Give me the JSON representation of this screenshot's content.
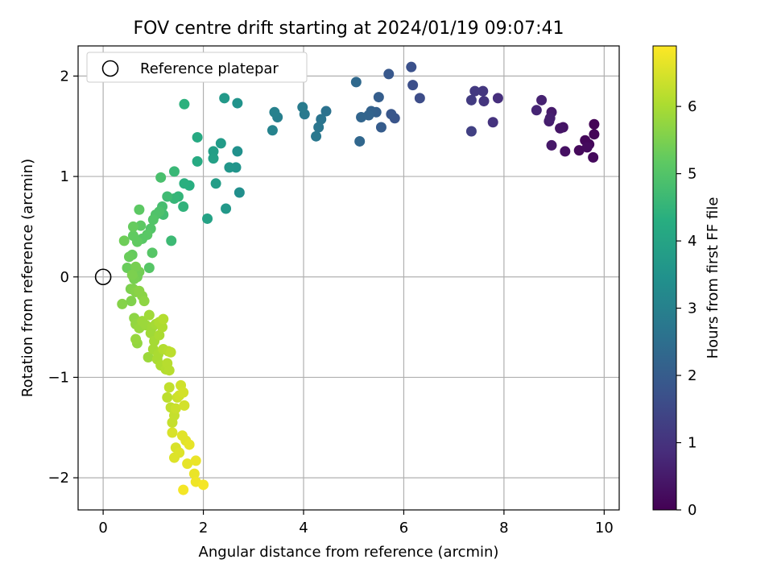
{
  "chart_data": {
    "type": "scatter",
    "title": "FOV centre drift starting at 2024/01/19 09:07:41",
    "xlabel": "Angular distance from reference (arcmin)",
    "ylabel": "Rotation from reference (arcmin)",
    "xlim": [
      -0.5,
      10.3
    ],
    "ylim": [
      -2.32,
      2.3
    ],
    "xticks": [
      0,
      2,
      4,
      6,
      8,
      10
    ],
    "yticks": [
      -2,
      -1,
      0,
      1,
      2
    ],
    "grid": true,
    "legend": {
      "position": "top-left",
      "label": "Reference platepar"
    },
    "reference_point": {
      "x": 0,
      "y": 0,
      "marker": "open-circle"
    },
    "colorbar": {
      "label": "Hours from first FF file",
      "colormap": "viridis",
      "range": [
        0,
        6.9
      ],
      "ticks": [
        0,
        1,
        2,
        3,
        4,
        5,
        6
      ]
    },
    "points": [
      [
        9.8,
        1.52,
        0.05
      ],
      [
        9.8,
        1.42,
        0.08
      ],
      [
        9.7,
        1.32,
        0.1
      ],
      [
        9.62,
        1.36,
        0.12
      ],
      [
        9.5,
        1.26,
        0.15
      ],
      [
        9.78,
        1.19,
        0.18
      ],
      [
        9.66,
        1.29,
        0.2
      ],
      [
        9.22,
        1.25,
        0.3
      ],
      [
        9.18,
        1.49,
        0.35
      ],
      [
        9.12,
        1.48,
        0.4
      ],
      [
        8.95,
        1.31,
        0.45
      ],
      [
        8.95,
        1.64,
        0.5
      ],
      [
        8.9,
        1.55,
        0.55
      ],
      [
        8.92,
        1.58,
        0.6
      ],
      [
        8.75,
        1.76,
        0.65
      ],
      [
        8.65,
        1.66,
        0.7
      ],
      [
        7.88,
        1.78,
        0.9
      ],
      [
        7.78,
        1.54,
        1.0
      ],
      [
        7.6,
        1.75,
        1.05
      ],
      [
        7.58,
        1.85,
        1.1
      ],
      [
        7.42,
        1.85,
        1.15
      ],
      [
        7.35,
        1.76,
        1.2
      ],
      [
        7.35,
        1.45,
        1.3
      ],
      [
        6.32,
        1.78,
        1.6
      ],
      [
        6.18,
        1.91,
        1.65
      ],
      [
        6.15,
        2.09,
        1.7
      ],
      [
        5.82,
        1.58,
        1.8
      ],
      [
        5.75,
        1.62,
        1.85
      ],
      [
        5.7,
        2.02,
        1.9
      ],
      [
        5.55,
        1.49,
        2.0
      ],
      [
        5.5,
        1.79,
        2.05
      ],
      [
        5.45,
        1.64,
        2.1
      ],
      [
        5.35,
        1.65,
        2.15
      ],
      [
        5.3,
        1.61,
        2.2
      ],
      [
        5.15,
        1.59,
        2.25
      ],
      [
        5.12,
        1.35,
        2.3
      ],
      [
        5.05,
        1.94,
        2.35
      ],
      [
        4.45,
        1.65,
        2.6
      ],
      [
        4.35,
        1.57,
        2.65
      ],
      [
        4.3,
        1.49,
        2.7
      ],
      [
        4.25,
        1.4,
        2.75
      ],
      [
        4.02,
        1.62,
        2.8
      ],
      [
        3.98,
        1.69,
        2.85
      ],
      [
        3.48,
        1.59,
        2.95
      ],
      [
        3.42,
        1.64,
        3.0
      ],
      [
        3.38,
        1.46,
        3.05
      ],
      [
        2.72,
        0.84,
        3.4
      ],
      [
        2.68,
        1.25,
        3.45
      ],
      [
        2.68,
        1.73,
        3.5
      ],
      [
        2.65,
        1.09,
        3.55
      ],
      [
        2.52,
        1.09,
        3.6
      ],
      [
        2.45,
        0.68,
        3.65
      ],
      [
        2.42,
        1.78,
        3.7
      ],
      [
        2.35,
        1.33,
        3.75
      ],
      [
        2.25,
        0.93,
        3.8
      ],
      [
        2.2,
        1.25,
        3.85
      ],
      [
        2.2,
        1.18,
        3.9
      ],
      [
        2.08,
        0.58,
        3.95
      ],
      [
        1.88,
        1.39,
        4.15
      ],
      [
        1.88,
        1.15,
        4.2
      ],
      [
        1.72,
        0.91,
        4.3
      ],
      [
        1.62,
        0.93,
        4.35
      ],
      [
        1.62,
        1.72,
        4.4
      ],
      [
        1.6,
        0.7,
        4.45
      ],
      [
        1.5,
        0.8,
        4.5
      ],
      [
        1.42,
        0.78,
        4.55
      ],
      [
        1.42,
        1.05,
        4.6
      ],
      [
        1.36,
        0.36,
        4.65
      ],
      [
        1.28,
        0.8,
        4.7
      ],
      [
        1.2,
        0.62,
        4.75
      ],
      [
        1.18,
        0.7,
        4.8
      ],
      [
        1.15,
        0.99,
        4.85
      ],
      [
        1.12,
        0.65,
        4.9
      ],
      [
        1.05,
        0.62,
        4.95
      ],
      [
        1.0,
        0.57,
        5.0
      ],
      [
        0.95,
        0.48,
        5.0
      ],
      [
        0.98,
        0.24,
        5.05
      ],
      [
        0.92,
        0.09,
        5.05
      ],
      [
        0.88,
        0.42,
        5.1
      ],
      [
        0.78,
        0.38,
        5.1
      ],
      [
        0.75,
        0.51,
        5.15
      ],
      [
        0.72,
        0.67,
        5.15
      ],
      [
        0.68,
        0.35,
        5.2
      ],
      [
        0.6,
        0.41,
        5.2
      ],
      [
        0.6,
        0.5,
        5.25
      ],
      [
        0.58,
        0.22,
        5.25
      ],
      [
        0.52,
        0.2,
        5.3
      ],
      [
        0.48,
        0.09,
        5.3
      ],
      [
        0.42,
        0.36,
        5.35
      ],
      [
        0.72,
        0.05,
        5.4
      ],
      [
        0.68,
        0.0,
        5.4
      ],
      [
        0.65,
        0.1,
        5.45
      ],
      [
        0.62,
        -0.02,
        5.45
      ],
      [
        0.58,
        0.02,
        5.5
      ],
      [
        0.55,
        -0.12,
        5.5
      ],
      [
        0.6,
        -0.12,
        5.55
      ],
      [
        0.56,
        -0.24,
        5.55
      ],
      [
        0.38,
        -0.27,
        5.6
      ],
      [
        0.65,
        -0.15,
        5.6
      ],
      [
        0.72,
        -0.14,
        5.65
      ],
      [
        0.78,
        -0.19,
        5.65
      ],
      [
        0.82,
        -0.24,
        5.7
      ],
      [
        0.62,
        -0.41,
        5.7
      ],
      [
        0.65,
        -0.47,
        5.75
      ],
      [
        0.68,
        -0.66,
        5.75
      ],
      [
        0.65,
        -0.62,
        5.8
      ],
      [
        0.72,
        -0.51,
        5.8
      ],
      [
        0.78,
        -0.44,
        5.85
      ],
      [
        0.85,
        -0.48,
        5.85
      ],
      [
        0.9,
        -0.8,
        5.85
      ],
      [
        0.92,
        -0.38,
        5.9
      ],
      [
        0.95,
        -0.56,
        5.9
      ],
      [
        0.98,
        -0.5,
        5.9
      ],
      [
        1.0,
        -0.72,
        5.95
      ],
      [
        1.02,
        -0.64,
        5.95
      ],
      [
        1.05,
        -0.47,
        5.95
      ],
      [
        1.08,
        -0.82,
        6.0
      ],
      [
        1.1,
        -0.77,
        6.0
      ],
      [
        1.12,
        -0.58,
        6.0
      ],
      [
        1.12,
        -0.45,
        6.05
      ],
      [
        1.15,
        -0.88,
        6.05
      ],
      [
        1.18,
        -0.5,
        6.05
      ],
      [
        1.2,
        -0.42,
        6.1
      ],
      [
        1.2,
        -0.72,
        6.1
      ],
      [
        1.25,
        -0.92,
        6.1
      ],
      [
        1.28,
        -0.86,
        6.15
      ],
      [
        1.3,
        -0.74,
        6.15
      ],
      [
        1.32,
        -0.93,
        6.15
      ],
      [
        1.35,
        -0.75,
        6.2
      ],
      [
        1.28,
        -1.2,
        6.2
      ],
      [
        1.32,
        -1.1,
        6.25
      ],
      [
        1.35,
        -1.3,
        6.25
      ],
      [
        1.38,
        -1.45,
        6.3
      ],
      [
        1.42,
        -1.38,
        6.3
      ],
      [
        1.45,
        -1.31,
        6.35
      ],
      [
        1.48,
        -1.2,
        6.35
      ],
      [
        1.52,
        -1.18,
        6.4
      ],
      [
        1.55,
        -1.08,
        6.4
      ],
      [
        1.6,
        -1.15,
        6.45
      ],
      [
        1.62,
        -1.28,
        6.45
      ],
      [
        1.38,
        -1.55,
        6.5
      ],
      [
        1.45,
        -1.7,
        6.5
      ],
      [
        1.42,
        -1.8,
        6.55
      ],
      [
        1.52,
        -1.75,
        6.55
      ],
      [
        1.58,
        -1.58,
        6.6
      ],
      [
        1.65,
        -1.63,
        6.6
      ],
      [
        1.68,
        -1.86,
        6.65
      ],
      [
        1.72,
        -1.67,
        6.65
      ],
      [
        1.82,
        -1.96,
        6.7
      ],
      [
        1.85,
        -1.83,
        6.7
      ],
      [
        1.85,
        -2.04,
        6.75
      ],
      [
        1.6,
        -2.12,
        6.8
      ],
      [
        2.0,
        -2.07,
        6.8
      ]
    ]
  }
}
